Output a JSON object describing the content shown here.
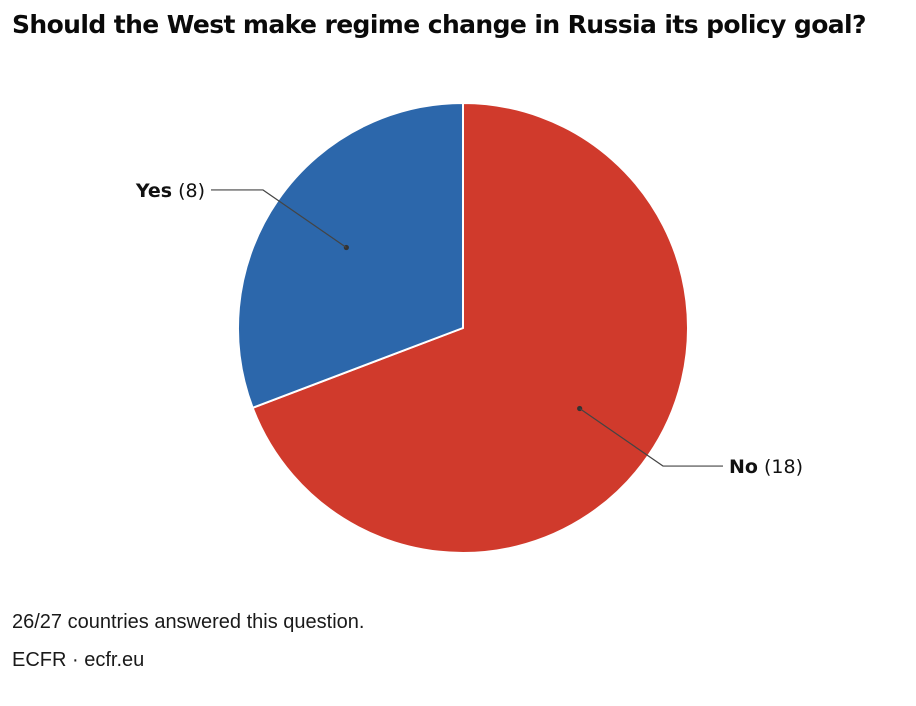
{
  "chart_data": {
    "type": "pie",
    "title": "Should the West make regime change in Russia its policy goal?",
    "slices": [
      {
        "label": "No",
        "value": 18,
        "value_text": "(18)",
        "color": "#d03a2c"
      },
      {
        "label": "Yes",
        "value": 8,
        "value_text": "(8)",
        "color": "#2c67ab"
      }
    ],
    "legend": "none"
  },
  "notes": {
    "footnote": "26/27 countries answered this question.",
    "source": "ECFR · ecfr.eu"
  }
}
